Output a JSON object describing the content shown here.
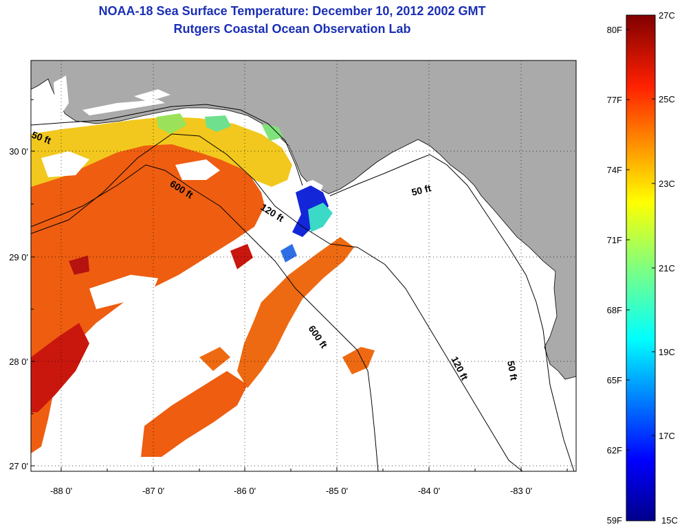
{
  "header": {
    "title": "NOAA-18 Sea Surface Temperature:  December 10, 2012 2002 GMT",
    "subtitle": "Rutgers Coastal Ocean Observation Lab"
  },
  "map": {
    "lon_ticks": [
      "-88 0'",
      "-87 0'",
      "-86 0'",
      "-85 0'",
      "-84 0'",
      "-83 0'"
    ],
    "lat_ticks": [
      "30 0'",
      "29 0'",
      "28 0'",
      "27 0'"
    ],
    "contours": [
      {
        "label": "50 ft",
        "depth_ft": 50
      },
      {
        "label": "600 ft",
        "depth_ft": 600
      },
      {
        "label": "120 ft",
        "depth_ft": 120
      },
      {
        "label": "50 ft",
        "depth_ft": 50
      },
      {
        "label": "600 ft",
        "depth_ft": 600
      },
      {
        "label": "120 ft",
        "depth_ft": 120
      },
      {
        "label": "50 ft",
        "depth_ft": 50
      }
    ],
    "colors": {
      "land": "#aaaaaa",
      "ocean_nodata": "#ffffff",
      "sst_warm": "#ee5d10",
      "sst_hot": "#c9170e",
      "sst_mid": "#f2c81e",
      "sst_cool": "#3cd9c6",
      "sst_cold": "#1327d8"
    }
  },
  "colorbar": {
    "fahrenheit_labels": [
      "80F",
      "77F",
      "74F",
      "71F",
      "68F",
      "65F",
      "62F",
      "59F"
    ],
    "celsius_labels": [
      "27C",
      "25C",
      "23C",
      "21C",
      "19C",
      "17C",
      "15C"
    ],
    "range_c": [
      15,
      27
    ],
    "range_f": [
      59,
      80.6
    ]
  }
}
